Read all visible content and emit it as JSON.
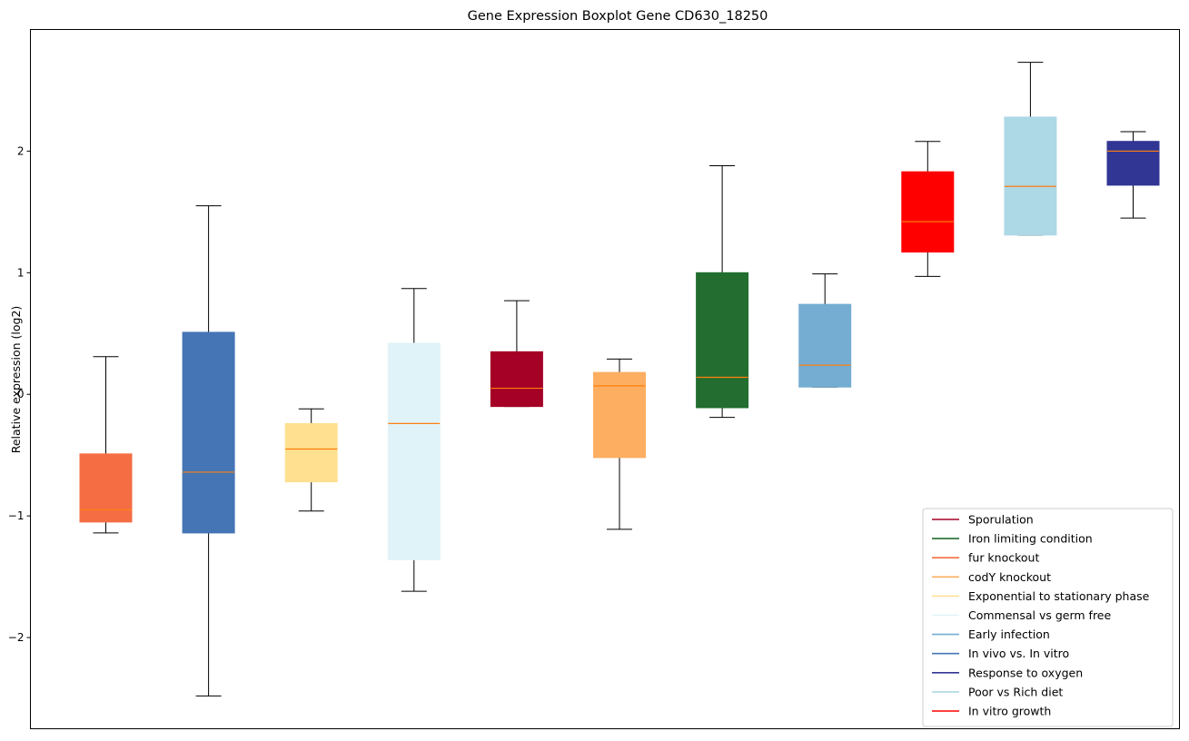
{
  "chart_data": {
    "type": "boxplot",
    "title": "Gene Expression Boxplot Gene CD630_18250",
    "xlabel": "",
    "ylabel": "Relative expression (log2)",
    "ylim": [
      -2.75,
      3.0
    ],
    "yticks": [
      -2,
      -1,
      0,
      1,
      2
    ],
    "ytick_labels": [
      "−2",
      "−1",
      "0",
      "1",
      "2"
    ],
    "median_color": "#ff7f0e",
    "legend_position": "lower-right",
    "series": [
      {
        "name": "fur knockout",
        "color": "#f46d43",
        "whisker_low": -1.14,
        "q1": -1.05,
        "median": -0.95,
        "q3": -0.49,
        "whisker_high": 0.31
      },
      {
        "name": "In vivo vs. In vitro",
        "color": "#4575b4",
        "whisker_low": -2.48,
        "q1": -1.14,
        "median": -0.64,
        "q3": 0.51,
        "whisker_high": 1.55
      },
      {
        "name": "Exponential to stationary phase",
        "color": "#fee090",
        "whisker_low": -0.96,
        "q1": -0.72,
        "median": -0.45,
        "q3": -0.24,
        "whisker_high": -0.12
      },
      {
        "name": "Commensal vs germ free",
        "color": "#e0f3f8",
        "whisker_low": -1.62,
        "q1": -1.36,
        "median": -0.24,
        "q3": 0.42,
        "whisker_high": 0.87
      },
      {
        "name": "Sporulation",
        "color": "#a50026",
        "whisker_low": -0.1,
        "q1": -0.1,
        "median": 0.05,
        "q3": 0.35,
        "whisker_high": 0.77
      },
      {
        "name": "codY knockout",
        "color": "#fdae61",
        "whisker_low": -1.11,
        "q1": -0.52,
        "median": 0.07,
        "q3": 0.18,
        "whisker_high": 0.29
      },
      {
        "name": "Iron limiting condition",
        "color": "#226d2f",
        "whisker_low": -0.19,
        "q1": -0.11,
        "median": 0.14,
        "q3": 1.0,
        "whisker_high": 1.88
      },
      {
        "name": "Early infection",
        "color": "#74add1",
        "whisker_low": 0.06,
        "q1": 0.06,
        "median": 0.24,
        "q3": 0.74,
        "whisker_high": 0.99
      },
      {
        "name": "In vitro growth",
        "color": "#ff0000",
        "whisker_low": 0.97,
        "q1": 1.17,
        "median": 1.42,
        "q3": 1.83,
        "whisker_high": 2.08
      },
      {
        "name": "Poor vs Rich diet",
        "color": "#add8e6",
        "whisker_low": 1.31,
        "q1": 1.31,
        "median": 1.71,
        "q3": 2.28,
        "whisker_high": 2.73
      },
      {
        "name": "Response to oxygen",
        "color": "#313695",
        "whisker_low": 1.45,
        "q1": 1.72,
        "median": 2.0,
        "q3": 2.08,
        "whisker_high": 2.16
      }
    ],
    "legend": [
      {
        "label": "Sporulation",
        "color": "#a50026"
      },
      {
        "label": "Iron limiting condition",
        "color": "#226d2f"
      },
      {
        "label": "fur knockout",
        "color": "#f46d43"
      },
      {
        "label": "codY knockout",
        "color": "#fdae61"
      },
      {
        "label": "Exponential to stationary phase",
        "color": "#fee090"
      },
      {
        "label": "Commensal vs germ free",
        "color": "#e0f3f8"
      },
      {
        "label": "Early infection",
        "color": "#74add1"
      },
      {
        "label": "In vivo vs. In vitro",
        "color": "#4575b4"
      },
      {
        "label": "Response to oxygen",
        "color": "#313695"
      },
      {
        "label": "Poor vs Rich diet",
        "color": "#add8e6"
      },
      {
        "label": "In vitro growth",
        "color": "#ff0000"
      }
    ]
  }
}
